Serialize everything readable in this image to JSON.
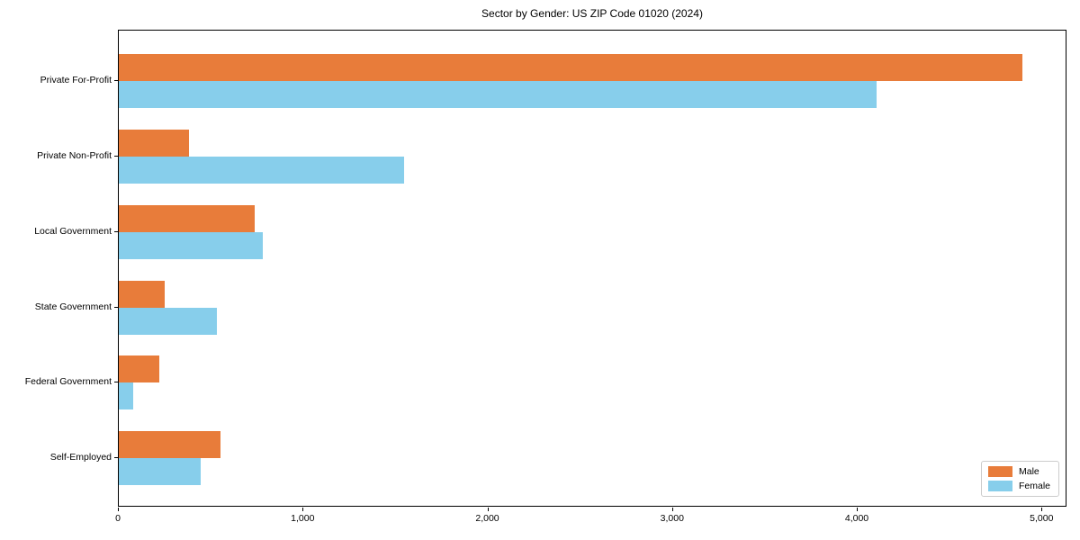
{
  "chart_data": {
    "type": "bar",
    "orientation": "horizontal",
    "title": "Sector by Gender: US ZIP Code 01020 (2024)",
    "categories": [
      "Private For-Profit",
      "Private Non-Profit",
      "Local Government",
      "State Government",
      "Federal Government",
      "Self-Employed"
    ],
    "series": [
      {
        "name": "Male",
        "color": "#e87c3a",
        "values": [
          4890,
          380,
          735,
          250,
          220,
          550
        ]
      },
      {
        "name": "Female",
        "color": "#87ceeb",
        "values": [
          4100,
          1545,
          780,
          530,
          80,
          445
        ]
      }
    ],
    "xlabel": "",
    "ylabel": "",
    "xlim": [
      0,
      5135
    ],
    "x_ticks": [
      0,
      1000,
      2000,
      3000,
      4000,
      5000
    ],
    "x_tick_labels": [
      "0",
      "1,000",
      "2,000",
      "3,000",
      "4,000",
      "5,000"
    ],
    "legend_position": "lower right",
    "grid": false,
    "spine_color": "#000000",
    "background_color": "#ffffff"
  }
}
